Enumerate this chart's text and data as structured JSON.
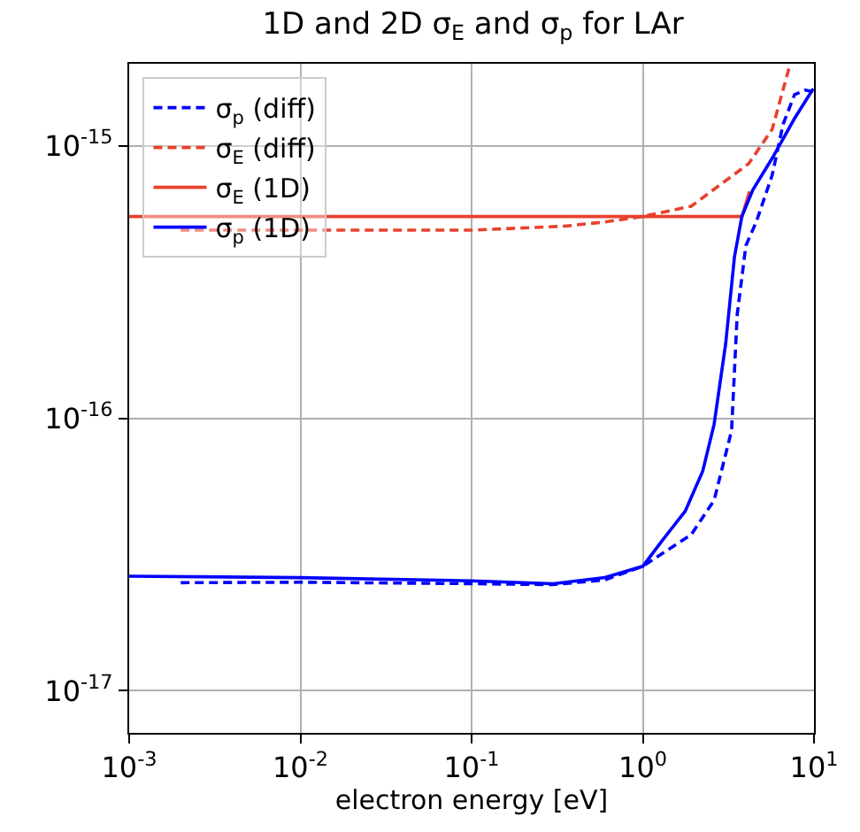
{
  "chart_data": {
    "type": "line",
    "title": "1D and 2D σ$_{E}$ and σ$_{p}$ for LAr",
    "xlabel": "electron energy [eV]",
    "log": "xy",
    "xlim": [
      0.001,
      10
    ],
    "ylim": [
      7e-18,
      2e-15
    ],
    "xticks": [
      {
        "value": 0.001,
        "label": "10$^{-3}$"
      },
      {
        "value": 0.01,
        "label": "10$^{-2}$"
      },
      {
        "value": 0.1,
        "label": "10$^{-1}$"
      },
      {
        "value": 1,
        "label": "10$^{0}$"
      },
      {
        "value": 10,
        "label": "10$^{1}$"
      }
    ],
    "yticks": [
      {
        "value": 1e-17,
        "label": "10$^{-17}$"
      },
      {
        "value": 1e-16,
        "label": "10$^{-16}$"
      },
      {
        "value": 1e-15,
        "label": "10$^{-15}$"
      }
    ],
    "grid": true,
    "legend": "top left",
    "series": [
      {
        "name": "σ$_{p}$ (diff)",
        "color": "#0000ff",
        "line_style": "dashed",
        "x": [
          0.002,
          0.01,
          0.1,
          0.3,
          0.6,
          1,
          1.92,
          2.61,
          3.3,
          3.56,
          4.0,
          4.6,
          5.7,
          6.6,
          7.7,
          8.9,
          9.9
        ],
        "values": [
          2.49e-17,
          2.5e-17,
          2.47e-17,
          2.45e-17,
          2.55e-17,
          2.86e-17,
          3.74e-17,
          5e-17,
          9e-17,
          2.4e-16,
          4.3e-16,
          5.25e-16,
          7.8e-16,
          1.2e-15,
          1.54e-15,
          1.6e-15,
          1.58e-15
        ]
      },
      {
        "name": "σ$_{E}$ (diff)",
        "color": "#e8412d",
        "line_style": "dashed",
        "x": [
          0.002,
          0.01,
          0.1,
          0.35,
          0.6,
          1,
          1.92,
          4.16,
          5.7,
          7.2
        ],
        "values": [
          4.9e-16,
          4.9e-16,
          4.9e-16,
          5.07e-16,
          5.25e-16,
          5.5e-16,
          6e-16,
          8.6e-16,
          1.15e-15,
          1.96e-15
        ]
      },
      {
        "name": "σ$_{E}$ (1D)",
        "color": "#e8412d",
        "line_style": "solid",
        "x": [
          0.001,
          3.8,
          4.2
        ],
        "values": [
          5.5e-16,
          5.5e-16,
          6.8e-16
        ]
      },
      {
        "name": "σ$_{p}$ (1D)",
        "color": "#0000ff",
        "line_style": "solid",
        "x": [
          0.001,
          0.01,
          0.1,
          0.3,
          0.6,
          1,
          1.3,
          1.77,
          2.24,
          2.61,
          3.05,
          3.43,
          3.79,
          4.4,
          5.7,
          7.7,
          9.9
        ],
        "values": [
          2.63e-17,
          2.6e-17,
          2.53e-17,
          2.47e-17,
          2.6e-17,
          2.86e-17,
          3.56e-17,
          4.56e-17,
          6.4e-17,
          9.5e-17,
          1.88e-16,
          3.9e-16,
          5.5e-16,
          6.9e-16,
          9e-16,
          1.26e-15,
          1.62e-15
        ]
      }
    ]
  }
}
